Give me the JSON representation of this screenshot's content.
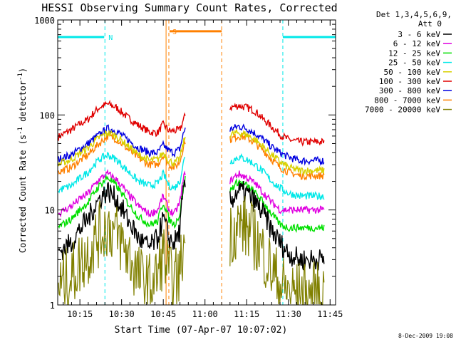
{
  "chart_data": {
    "type": "line",
    "title": "HESSI Observing Summary Count Rates, Corrected",
    "xlabel": "Start Time (07-Apr-07 10:07:02)",
    "ylabel_main": "Corrected Count Rate (s",
    "ylabel_sup1": "-1",
    "ylabel_mid": " detector",
    "ylabel_sup2": "-1",
    "ylabel_end": ")",
    "yscale": "log",
    "ylim": [
      1,
      1000
    ],
    "xlim_minutes": [
      10.117,
      11.783
    ],
    "x_ticks": [
      "10:15",
      "10:30",
      "10:45",
      "11:00",
      "11:15",
      "11:30",
      "11:45"
    ],
    "y_ticks": [
      "1",
      "10",
      "100",
      "1000"
    ],
    "footer_date": "8-Dec-2009 19:08",
    "legend": {
      "placement": "right",
      "header_line1": "Det 1,3,4,5,6,9,",
      "header_line2": "Att 0",
      "entries": [
        {
          "label": "3 - 6 keV",
          "color": "#000000"
        },
        {
          "label": "6 - 12 keV",
          "color": "#e000e0"
        },
        {
          "label": "12 - 25 keV",
          "color": "#00e000"
        },
        {
          "label": "25 - 50 keV",
          "color": "#00e8e8"
        },
        {
          "label": "50 - 100 keV",
          "color": "#d8d000"
        },
        {
          "label": "100 - 300 keV",
          "color": "#e00000"
        },
        {
          "label": "300 - 800 keV",
          "color": "#0000e0"
        },
        {
          "label": "800 - 7000 keV",
          "color": "#ff8000"
        },
        {
          "label": "7000 - 20000 keV",
          "color": "#808000"
        }
      ]
    },
    "annotations": [
      {
        "flag": "N",
        "color": "#00e8e8",
        "start": "10:24",
        "end": "11:28"
      },
      {
        "flag": "S",
        "color": "#ff8000",
        "start": "10:47",
        "end": "11:06"
      }
    ],
    "series": [
      {
        "name": "100 - 300 keV",
        "color": "#e00000",
        "segments": [
          {
            "x": [
              "10:07",
              "10:12",
              "10:18",
              "10:22",
              "10:25",
              "10:28",
              "10:32",
              "10:36",
              "10:40",
              "10:43",
              "10:45",
              "10:47",
              "10:49",
              "10:51",
              "10:53"
            ],
            "y": [
              58,
              70,
              90,
              120,
              130,
              120,
              95,
              78,
              66,
              65,
              80,
              68,
              68,
              70,
              100
            ]
          },
          {
            "x": [
              "11:09",
              "11:12",
              "11:15",
              "11:18",
              "11:21",
              "11:24",
              "11:27",
              "11:30",
              "11:34",
              "11:38",
              "11:43"
            ],
            "y": [
              120,
              125,
              120,
              110,
              90,
              75,
              62,
              55,
              52,
              52,
              52
            ]
          }
        ]
      },
      {
        "name": "300 - 800 keV",
        "color": "#0000e0",
        "segments": [
          {
            "x": [
              "10:07",
              "10:12",
              "10:18",
              "10:22",
              "10:25",
              "10:28",
              "10:32",
              "10:36",
              "10:40",
              "10:43",
              "10:45",
              "10:47",
              "10:49",
              "10:51",
              "10:53"
            ],
            "y": [
              34,
              38,
              50,
              62,
              72,
              68,
              55,
              45,
              40,
              40,
              48,
              42,
              40,
              44,
              75
            ]
          },
          {
            "x": [
              "11:09",
              "11:12",
              "11:15",
              "11:18",
              "11:21",
              "11:24",
              "11:27",
              "11:30",
              "11:34",
              "11:38",
              "11:43"
            ],
            "y": [
              70,
              76,
              72,
              64,
              55,
              46,
              40,
              36,
              33,
              33,
              33
            ]
          }
        ]
      },
      {
        "name": "800 - 7000 keV",
        "color": "#ff8000",
        "segments": [
          {
            "x": [
              "10:07",
              "10:12",
              "10:18",
              "10:22",
              "10:25",
              "10:28",
              "10:32",
              "10:36",
              "10:40",
              "10:43",
              "10:45",
              "10:47",
              "10:49",
              "10:51",
              "10:53"
            ],
            "y": [
              25,
              28,
              38,
              50,
              60,
              56,
              44,
              35,
              30,
              30,
              38,
              30,
              28,
              32,
              55
            ]
          },
          {
            "x": [
              "11:09",
              "11:12",
              "11:15",
              "11:18",
              "11:21",
              "11:24",
              "11:27",
              "11:30",
              "11:34",
              "11:38",
              "11:43"
            ],
            "y": [
              55,
              60,
              58,
              50,
              42,
              34,
              28,
              25,
              23,
              23,
              23
            ]
          }
        ]
      },
      {
        "name": "50 - 100 keV",
        "color": "#d8d000",
        "segments": [
          {
            "x": [
              "10:07",
              "10:12",
              "10:18",
              "10:22",
              "10:25",
              "10:28",
              "10:32",
              "10:36",
              "10:40",
              "10:43",
              "10:45",
              "10:47",
              "10:49",
              "10:51",
              "10:53"
            ],
            "y": [
              30,
              34,
              45,
              58,
              65,
              60,
              48,
              38,
              33,
              34,
              40,
              33,
              31,
              35,
              60
            ]
          },
          {
            "x": [
              "11:09",
              "11:12",
              "11:15",
              "11:18",
              "11:21",
              "11:24",
              "11:27",
              "11:30",
              "11:34",
              "11:38",
              "11:43"
            ],
            "y": [
              62,
              65,
              62,
              55,
              46,
              38,
              32,
              28,
              26,
              26,
              26
            ]
          }
        ]
      },
      {
        "name": "25 - 50 keV",
        "color": "#00e8e8",
        "segments": [
          {
            "x": [
              "10:07",
              "10:12",
              "10:18",
              "10:22",
              "10:25",
              "10:28",
              "10:32",
              "10:36",
              "10:40",
              "10:43",
              "10:45",
              "10:47",
              "10:49",
              "10:51",
              "10:53"
            ],
            "y": [
              16,
              18,
              25,
              34,
              38,
              34,
              26,
              20,
              18,
              19,
              24,
              18,
              17,
              20,
              38
            ]
          },
          {
            "x": [
              "11:09",
              "11:12",
              "11:15",
              "11:18",
              "11:21",
              "11:24",
              "11:27",
              "11:30",
              "11:34",
              "11:38",
              "11:43"
            ],
            "y": [
              32,
              36,
              34,
              30,
              25,
              20,
              17,
              15,
              14,
              14,
              14
            ]
          }
        ]
      },
      {
        "name": "6 - 12 keV",
        "color": "#e000e0",
        "segments": [
          {
            "x": [
              "10:07",
              "10:12",
              "10:18",
              "10:22",
              "10:25",
              "10:28",
              "10:32",
              "10:36",
              "10:40",
              "10:43",
              "10:45",
              "10:47",
              "10:49",
              "10:51",
              "10:53"
            ],
            "y": [
              9,
              11,
              15,
              21,
              24,
              21,
              15,
              11,
              9,
              10,
              14,
              10,
              9,
              12,
              26
            ]
          },
          {
            "x": [
              "11:09",
              "11:12",
              "11:15",
              "11:18",
              "11:21",
              "11:24",
              "11:27",
              "11:30",
              "11:34",
              "11:38",
              "11:43"
            ],
            "y": [
              20,
              24,
              22,
              19,
              15,
              12,
              10,
              10,
              10,
              10,
              10
            ]
          }
        ]
      },
      {
        "name": "12 - 25 keV",
        "color": "#00e000",
        "segments": [
          {
            "x": [
              "10:07",
              "10:12",
              "10:18",
              "10:22",
              "10:25",
              "10:28",
              "10:32",
              "10:36",
              "10:40",
              "10:43",
              "10:45",
              "10:47",
              "10:49",
              "10:51",
              "10:53"
            ],
            "y": [
              6.5,
              8,
              12,
              18,
              22,
              18,
              12,
              8.5,
              7,
              7.5,
              12,
              8,
              7,
              9,
              22
            ]
          },
          {
            "x": [
              "11:09",
              "11:12",
              "11:15",
              "11:18",
              "11:21",
              "11:24",
              "11:27",
              "11:30",
              "11:34",
              "11:38",
              "11:43"
            ],
            "y": [
              16,
              20,
              18,
              15,
              12,
              9,
              7,
              6.5,
              6.5,
              6.5,
              6.5
            ]
          }
        ]
      },
      {
        "name": "3 - 6 keV",
        "color": "#000000",
        "segments": [
          {
            "x": [
              "10:07",
              "10:12",
              "10:18",
              "10:22",
              "10:25",
              "10:28",
              "10:32",
              "10:36",
              "10:40",
              "10:43",
              "10:45",
              "10:47",
              "10:49",
              "10:51",
              "10:53"
            ],
            "y": [
              3.5,
              4.5,
              8,
              13,
              16,
              13,
              8,
              5,
              4,
              5,
              8,
              5,
              4.5,
              6,
              20
            ]
          },
          {
            "x": [
              "11:09",
              "11:12",
              "11:15",
              "11:18",
              "11:21",
              "11:24",
              "11:27",
              "11:30",
              "11:34",
              "11:38",
              "11:43"
            ],
            "y": [
              12,
              16,
              15,
              12,
              9,
              6,
              4.5,
              3.5,
              3,
              3,
              3
            ]
          }
        ]
      },
      {
        "name": "7000 - 20000 keV",
        "color": "#808000",
        "segments": [
          {
            "x": [
              "10:07",
              "10:12",
              "10:18",
              "10:22",
              "10:25",
              "10:28",
              "10:32",
              "10:36",
              "10:40",
              "10:43",
              "10:45",
              "10:47",
              "10:49",
              "10:51",
              "10:53"
            ],
            "y": [
              1.5,
              2,
              3.5,
              5.5,
              7,
              5.5,
              3.5,
              2,
              1.6,
              2,
              3.5,
              2,
              1.7,
              2.2,
              5
            ]
          },
          {
            "x": [
              "11:09",
              "11:12",
              "11:15",
              "11:18",
              "11:21",
              "11:24",
              "11:27",
              "11:30",
              "11:34",
              "11:38",
              "11:43"
            ],
            "y": [
              5.5,
              7,
              6.5,
              5,
              3.5,
              2.3,
              1.6,
              1.4,
              1.3,
              1.3,
              1.3
            ]
          }
        ]
      }
    ]
  }
}
